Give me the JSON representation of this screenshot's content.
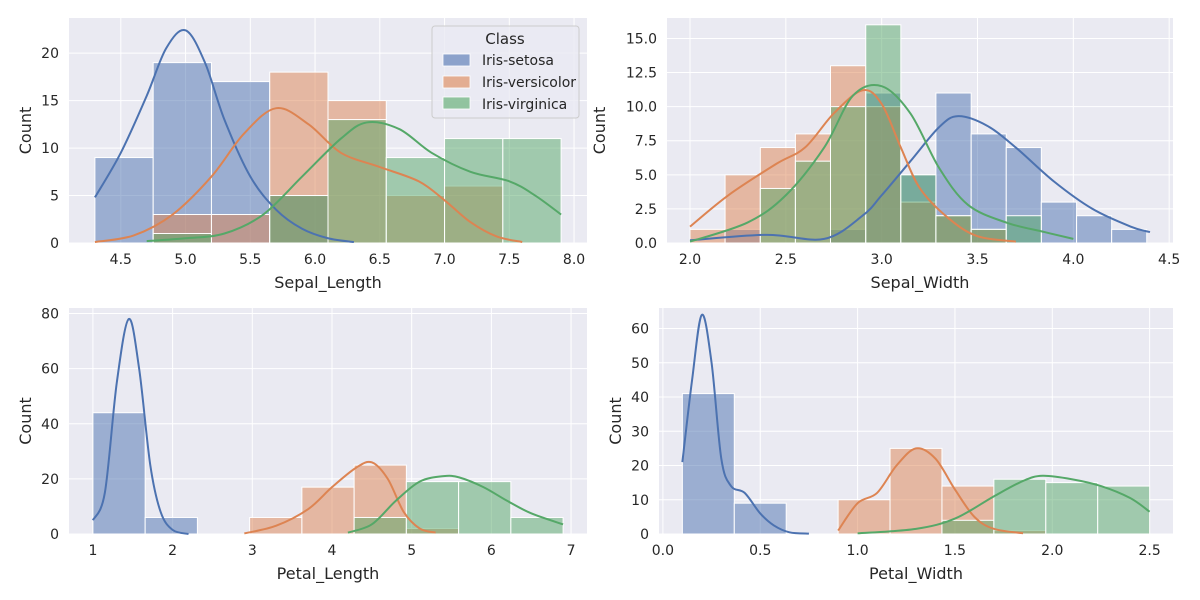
{
  "colors": {
    "plot_bg": "#EAEAF2",
    "grid": "#FFFFFF",
    "text": "#262626",
    "series": {
      "Iris-setosa": "#4C72B0",
      "Iris-versicolor": "#DD8452",
      "Iris-virginica": "#55A868"
    },
    "bar_opacity": 0.5
  },
  "legend": {
    "title": "Class",
    "entries": [
      "Iris-setosa",
      "Iris-versicolor",
      "Iris-virginica"
    ],
    "placement": "top-right of first panel"
  },
  "chart_data": [
    {
      "type": "histogram-kde",
      "xlabel": "Sepal_Length",
      "ylabel": "Count",
      "grid": true,
      "xlim": [
        4.1,
        8.1
      ],
      "ylim": [
        0,
        23.7
      ],
      "xticks": [
        "4.5",
        "5.0",
        "5.5",
        "6.0",
        "6.5",
        "7.0",
        "7.5",
        "8.0"
      ],
      "yticks": [
        "0",
        "5",
        "10",
        "15",
        "20"
      ],
      "bin_edges": [
        4.3,
        4.75,
        5.2,
        5.65,
        6.1,
        6.55,
        7.0,
        7.45,
        7.9
      ],
      "series": [
        {
          "name": "Iris-setosa",
          "counts": [
            9,
            19,
            17,
            5,
            0,
            0,
            0,
            0
          ],
          "kde": [
            [
              4.3,
              4.8
            ],
            [
              4.5,
              9.5
            ],
            [
              4.7,
              15.5
            ],
            [
              4.85,
              20.5
            ],
            [
              5.0,
              22.4
            ],
            [
              5.15,
              19
            ],
            [
              5.3,
              13
            ],
            [
              5.5,
              7
            ],
            [
              5.7,
              3.5
            ],
            [
              5.9,
              1.5
            ],
            [
              6.1,
              0.5
            ],
            [
              6.3,
              0.1
            ]
          ]
        },
        {
          "name": "Iris-versicolor",
          "counts": [
            0,
            3,
            3,
            18,
            15,
            5,
            6,
            0
          ],
          "kde": [
            [
              4.3,
              0.1
            ],
            [
              4.6,
              0.8
            ],
            [
              4.9,
              3
            ],
            [
              5.2,
              7
            ],
            [
              5.45,
              11.5
            ],
            [
              5.7,
              14.2
            ],
            [
              5.95,
              12.5
            ],
            [
              6.2,
              9.5
            ],
            [
              6.5,
              8
            ],
            [
              6.8,
              6.5
            ],
            [
              7.0,
              4.5
            ],
            [
              7.2,
              2.2
            ],
            [
              7.4,
              0.7
            ],
            [
              7.6,
              0.1
            ]
          ]
        },
        {
          "name": "Iris-virginica",
          "counts": [
            0,
            1,
            0,
            5,
            13,
            9,
            11,
            11
          ],
          "kde": [
            [
              4.7,
              0.2
            ],
            [
              5.0,
              0.5
            ],
            [
              5.3,
              1
            ],
            [
              5.6,
              3
            ],
            [
              5.9,
              7
            ],
            [
              6.2,
              11
            ],
            [
              6.4,
              12.7
            ],
            [
              6.65,
              12
            ],
            [
              6.9,
              9.5
            ],
            [
              7.2,
              7.5
            ],
            [
              7.5,
              6.5
            ],
            [
              7.7,
              5
            ],
            [
              7.9,
              3
            ]
          ]
        }
      ]
    },
    {
      "type": "histogram-kde",
      "xlabel": "Sepal_Width",
      "ylabel": "Count",
      "grid": true,
      "xlim": [
        1.88,
        4.52
      ],
      "ylim": [
        0,
        16.5
      ],
      "xticks": [
        "2.0",
        "2.5",
        "3.0",
        "3.5",
        "4.0",
        "4.5"
      ],
      "yticks": [
        "0.0",
        "2.5",
        "5.0",
        "7.5",
        "10.0",
        "12.5",
        "15.0"
      ],
      "bin_edges": [
        2.0,
        2.183,
        2.367,
        2.55,
        2.733,
        2.917,
        3.1,
        3.283,
        3.467,
        3.65,
        3.833,
        4.017,
        4.2,
        4.383
      ],
      "series": [
        {
          "name": "Iris-setosa",
          "counts": [
            0,
            1,
            0,
            0,
            1,
            11,
            5,
            11,
            8,
            7,
            3,
            2,
            1
          ],
          "kde": [
            [
              2.0,
              0.2
            ],
            [
              2.4,
              0.6
            ],
            [
              2.7,
              0.3
            ],
            [
              2.9,
              2
            ],
            [
              3.0,
              3.5
            ],
            [
              3.15,
              6
            ],
            [
              3.3,
              8.5
            ],
            [
              3.4,
              9.3
            ],
            [
              3.55,
              8.6
            ],
            [
              3.7,
              7
            ],
            [
              3.9,
              4.5
            ],
            [
              4.1,
              2.5
            ],
            [
              4.3,
              1.2
            ],
            [
              4.4,
              0.8
            ]
          ]
        },
        {
          "name": "Iris-versicolor",
          "counts": [
            1,
            5,
            7,
            8,
            13,
            10,
            3,
            2,
            1,
            0,
            0,
            0,
            0
          ],
          "kde": [
            [
              2.0,
              1.2
            ],
            [
              2.2,
              3.5
            ],
            [
              2.45,
              5.8
            ],
            [
              2.6,
              7
            ],
            [
              2.75,
              9.5
            ],
            [
              2.9,
              11.2
            ],
            [
              3.0,
              10.2
            ],
            [
              3.1,
              7
            ],
            [
              3.2,
              4
            ],
            [
              3.35,
              1.8
            ],
            [
              3.5,
              0.5
            ],
            [
              3.7,
              0.1
            ]
          ]
        },
        {
          "name": "Iris-virginica",
          "counts": [
            0,
            0,
            4,
            6,
            10,
            16,
            5,
            2,
            1,
            2,
            0,
            0,
            0
          ],
          "kde": [
            [
              2.0,
              0.1
            ],
            [
              2.3,
              1.5
            ],
            [
              2.5,
              3.5
            ],
            [
              2.7,
              7
            ],
            [
              2.85,
              10.8
            ],
            [
              3.0,
              11.5
            ],
            [
              3.15,
              9.5
            ],
            [
              3.3,
              5.5
            ],
            [
              3.45,
              2.8
            ],
            [
              3.65,
              1.5
            ],
            [
              3.85,
              0.8
            ],
            [
              4.0,
              0.3
            ]
          ]
        }
      ]
    },
    {
      "type": "histogram-kde",
      "xlabel": "Petal_Length",
      "ylabel": "Count",
      "grid": true,
      "xlim": [
        0.7,
        7.2
      ],
      "ylim": [
        0,
        82
      ],
      "xticks": [
        "1",
        "2",
        "3",
        "4",
        "5",
        "6",
        "7"
      ],
      "yticks": [
        "0",
        "20",
        "40",
        "60",
        "80"
      ],
      "bin_edges": [
        1.0,
        1.6556,
        2.3111,
        2.9667,
        3.6222,
        4.2778,
        4.9333,
        5.5889,
        6.2444,
        6.9
      ],
      "series": [
        {
          "name": "Iris-setosa",
          "counts": [
            44,
            6,
            0,
            0,
            0,
            0,
            0,
            0,
            0
          ],
          "kde": [
            [
              1.0,
              5
            ],
            [
              1.15,
              15
            ],
            [
              1.3,
              55
            ],
            [
              1.45,
              78
            ],
            [
              1.58,
              60
            ],
            [
              1.72,
              25
            ],
            [
              1.85,
              8
            ],
            [
              2.0,
              1.5
            ],
            [
              2.2,
              0
            ]
          ]
        },
        {
          "name": "Iris-versicolor",
          "counts": [
            0,
            0,
            0,
            6,
            17,
            25,
            2,
            0,
            0
          ],
          "kde": [
            [
              2.9,
              0.2
            ],
            [
              3.3,
              3
            ],
            [
              3.7,
              9
            ],
            [
              4.0,
              17
            ],
            [
              4.3,
              24
            ],
            [
              4.5,
              26
            ],
            [
              4.7,
              20
            ],
            [
              4.9,
              8
            ],
            [
              5.1,
              2
            ],
            [
              5.3,
              0.5
            ]
          ]
        },
        {
          "name": "Iris-virginica",
          "counts": [
            0,
            0,
            0,
            0,
            0,
            6,
            19,
            19,
            6
          ],
          "kde": [
            [
              4.2,
              0.5
            ],
            [
              4.5,
              3.5
            ],
            [
              4.8,
              12
            ],
            [
              5.1,
              19
            ],
            [
              5.4,
              21
            ],
            [
              5.6,
              20.5
            ],
            [
              5.9,
              17
            ],
            [
              6.2,
              12
            ],
            [
              6.5,
              7.5
            ],
            [
              6.9,
              3.5
            ]
          ]
        }
      ]
    },
    {
      "type": "histogram-kde",
      "xlabel": "Petal_Width",
      "ylabel": "Count",
      "grid": true,
      "xlim": [
        -0.02,
        2.62
      ],
      "ylim": [
        0,
        66
      ],
      "xticks": [
        "0.0",
        "0.5",
        "1.0",
        "1.5",
        "2.0",
        "2.5"
      ],
      "yticks": [
        "0",
        "10",
        "20",
        "30",
        "40",
        "50",
        "60"
      ],
      "bin_edges": [
        0.1,
        0.3667,
        0.6333,
        0.9,
        1.1667,
        1.4333,
        1.7,
        1.9667,
        2.2333,
        2.5
      ],
      "series": [
        {
          "name": "Iris-setosa",
          "counts": [
            41,
            9,
            0,
            0,
            0,
            0,
            0,
            0,
            0
          ],
          "kde": [
            [
              0.1,
              21
            ],
            [
              0.15,
              45
            ],
            [
              0.2,
              64
            ],
            [
              0.25,
              50
            ],
            [
              0.3,
              22
            ],
            [
              0.35,
              14
            ],
            [
              0.42,
              12
            ],
            [
              0.5,
              6
            ],
            [
              0.57,
              2.5
            ],
            [
              0.65,
              0.5
            ],
            [
              0.75,
              0.1
            ]
          ]
        },
        {
          "name": "Iris-versicolor",
          "counts": [
            0,
            0,
            0,
            10,
            25,
            14,
            1,
            0,
            0
          ],
          "kde": [
            [
              0.9,
              1
            ],
            [
              1.0,
              9
            ],
            [
              1.1,
              12
            ],
            [
              1.2,
              20
            ],
            [
              1.3,
              25
            ],
            [
              1.4,
              22
            ],
            [
              1.5,
              13
            ],
            [
              1.6,
              5
            ],
            [
              1.7,
              1.5
            ],
            [
              1.85,
              0.2
            ]
          ]
        },
        {
          "name": "Iris-virginica",
          "counts": [
            0,
            0,
            0,
            0,
            0,
            4,
            16,
            15,
            14
          ],
          "kde": [
            [
              1.0,
              0.2
            ],
            [
              1.3,
              1.5
            ],
            [
              1.5,
              4.5
            ],
            [
              1.7,
              11
            ],
            [
              1.85,
              15.5
            ],
            [
              1.95,
              17
            ],
            [
              2.1,
              16
            ],
            [
              2.25,
              14
            ],
            [
              2.4,
              10.5
            ],
            [
              2.5,
              6.5
            ]
          ]
        }
      ]
    }
  ]
}
